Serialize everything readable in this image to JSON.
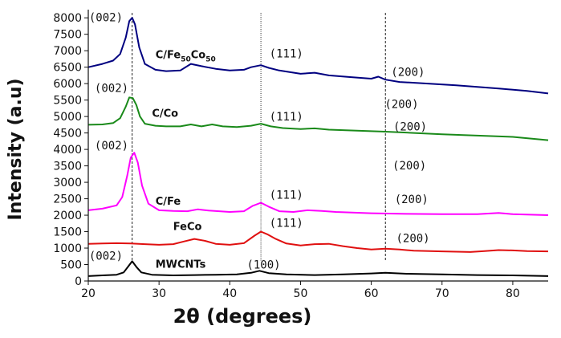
{
  "chart_data": {
    "type": "line",
    "title": "",
    "xlabel": "2θ (degrees)",
    "ylabel": "Intensity (a.u)",
    "xlim": [
      20,
      85
    ],
    "ylim": [
      0,
      8200
    ],
    "xticks": [
      20,
      30,
      40,
      50,
      60,
      70,
      80
    ],
    "yticks": [
      0,
      500,
      1000,
      1500,
      2000,
      2500,
      3000,
      3500,
      4000,
      4500,
      5000,
      5500,
      6000,
      6500,
      7000,
      7500,
      8000
    ],
    "grid": false,
    "reference_lines_x": [
      26.2,
      44.4,
      62.0
    ],
    "series": [
      {
        "name": "MWCNTs",
        "label_parts": [
          {
            "t": "MWCNTs"
          }
        ],
        "color": "#000000",
        "x": [
          20,
          22,
          24,
          25,
          25.6,
          26.2,
          26.8,
          27.5,
          29,
          32,
          35,
          38,
          41,
          43,
          44.2,
          45.5,
          48,
          52,
          56,
          60,
          62,
          65,
          70,
          75,
          80,
          85
        ],
        "y": [
          150,
          170,
          190,
          260,
          430,
          600,
          430,
          260,
          190,
          170,
          180,
          190,
          200,
          250,
          310,
          240,
          200,
          180,
          200,
          230,
          250,
          220,
          200,
          180,
          170,
          150
        ]
      },
      {
        "name": "FeCo",
        "label_parts": [
          {
            "t": "FeCo"
          }
        ],
        "color": "#e01010",
        "x": [
          20,
          22,
          24,
          26,
          28,
          30,
          32,
          33.5,
          35,
          36.5,
          38,
          40,
          42,
          43.5,
          44.4,
          45.3,
          46.5,
          48,
          50,
          52,
          54,
          56,
          58,
          60,
          62,
          64,
          66,
          70,
          74,
          76,
          78,
          80,
          82,
          85
        ],
        "y": [
          1130,
          1140,
          1150,
          1140,
          1120,
          1100,
          1120,
          1200,
          1280,
          1220,
          1130,
          1100,
          1150,
          1380,
          1500,
          1420,
          1280,
          1140,
          1080,
          1120,
          1130,
          1060,
          1000,
          960,
          980,
          960,
          920,
          900,
          880,
          910,
          940,
          930,
          910,
          900
        ]
      },
      {
        "name": "C/Fe",
        "label_parts": [
          {
            "t": "C/Fe"
          }
        ],
        "color": "#ff00ff",
        "x": [
          20,
          22,
          24,
          24.8,
          25.5,
          26,
          26.5,
          27,
          27.6,
          28.5,
          30,
          32,
          34,
          35.5,
          37,
          40,
          42,
          43.2,
          44.4,
          45.5,
          47,
          49,
          51,
          53,
          55,
          60,
          65,
          70,
          75,
          78,
          80,
          85
        ],
        "y": [
          2150,
          2200,
          2300,
          2550,
          3200,
          3750,
          3900,
          3600,
          2900,
          2350,
          2150,
          2130,
          2120,
          2180,
          2140,
          2100,
          2120,
          2280,
          2380,
          2260,
          2120,
          2100,
          2150,
          2130,
          2100,
          2060,
          2040,
          2030,
          2030,
          2070,
          2030,
          2000
        ]
      },
      {
        "name": "C/Co",
        "label_parts": [
          {
            "t": "C/Co"
          }
        ],
        "color": "#1a8a1a",
        "x": [
          20,
          22,
          23.5,
          24.5,
          25.3,
          25.8,
          26.3,
          26.8,
          27.3,
          28,
          29.5,
          31,
          33,
          34.5,
          36,
          37.5,
          39,
          41,
          43,
          44.4,
          45.8,
          47.5,
          50,
          52,
          54,
          58,
          62,
          66,
          70,
          75,
          80,
          85
        ],
        "y": [
          4750,
          4760,
          4800,
          4950,
          5300,
          5580,
          5560,
          5350,
          5000,
          4780,
          4720,
          4700,
          4700,
          4760,
          4700,
          4760,
          4700,
          4680,
          4720,
          4780,
          4700,
          4650,
          4620,
          4640,
          4600,
          4570,
          4540,
          4500,
          4460,
          4420,
          4380,
          4280
        ]
      },
      {
        "name": "C/Fe50Co50",
        "label_parts": [
          {
            "t": "C/Fe"
          },
          {
            "t": "50",
            "sub": true
          },
          {
            "t": "Co"
          },
          {
            "t": "50",
            "sub": true
          }
        ],
        "color": "#000080",
        "x": [
          20,
          22,
          23.5,
          24.5,
          25.3,
          25.8,
          26.2,
          26.6,
          27.2,
          28,
          29.5,
          31,
          33,
          34.5,
          36,
          38,
          40,
          42,
          43,
          44.4,
          45.5,
          47,
          50,
          52,
          54,
          57,
          60,
          61,
          62,
          64,
          68,
          72,
          78,
          82,
          85
        ],
        "y": [
          6500,
          6600,
          6700,
          6900,
          7400,
          7900,
          8000,
          7800,
          7100,
          6600,
          6420,
          6380,
          6400,
          6600,
          6530,
          6450,
          6400,
          6420,
          6500,
          6560,
          6480,
          6400,
          6300,
          6330,
          6250,
          6200,
          6150,
          6210,
          6120,
          6050,
          6000,
          5950,
          5850,
          5780,
          5700
        ]
      }
    ],
    "peak_annotations": [
      {
        "text": "(002)",
        "x": 20.1,
        "y": 7900
      },
      {
        "text": "(111)",
        "x": 45.6,
        "y": 6800
      },
      {
        "text": "(200)",
        "x": 62.8,
        "y": 6230
      },
      {
        "text": "(002)",
        "x": 20.9,
        "y": 5750
      },
      {
        "text": "(111)",
        "x": 45.6,
        "y": 4880
      },
      {
        "text": "(200)",
        "x": 61.9,
        "y": 5260
      },
      {
        "text": "(200)",
        "x": 63.1,
        "y": 4580
      },
      {
        "text": "(002)",
        "x": 20.9,
        "y": 4000
      },
      {
        "text": "(200)",
        "x": 63.0,
        "y": 3390
      },
      {
        "text": "(111)",
        "x": 45.6,
        "y": 2500
      },
      {
        "text": "(200)",
        "x": 63.3,
        "y": 2370
      },
      {
        "text": "(111)",
        "x": 45.6,
        "y": 1650
      },
      {
        "text": "(200)",
        "x": 63.5,
        "y": 1180
      },
      {
        "text": "(002)",
        "x": 20.1,
        "y": 650
      },
      {
        "text": "(100)",
        "x": 42.4,
        "y": 380
      }
    ],
    "series_labels": [
      {
        "series": 4,
        "x": 29.5,
        "y": 6770
      },
      {
        "series": 3,
        "x": 29.0,
        "y": 4990
      },
      {
        "series": 2,
        "x": 29.5,
        "y": 2320
      },
      {
        "series": 1,
        "x": 32.0,
        "y": 1550
      },
      {
        "series": 0,
        "x": 29.5,
        "y": 400
      }
    ]
  }
}
